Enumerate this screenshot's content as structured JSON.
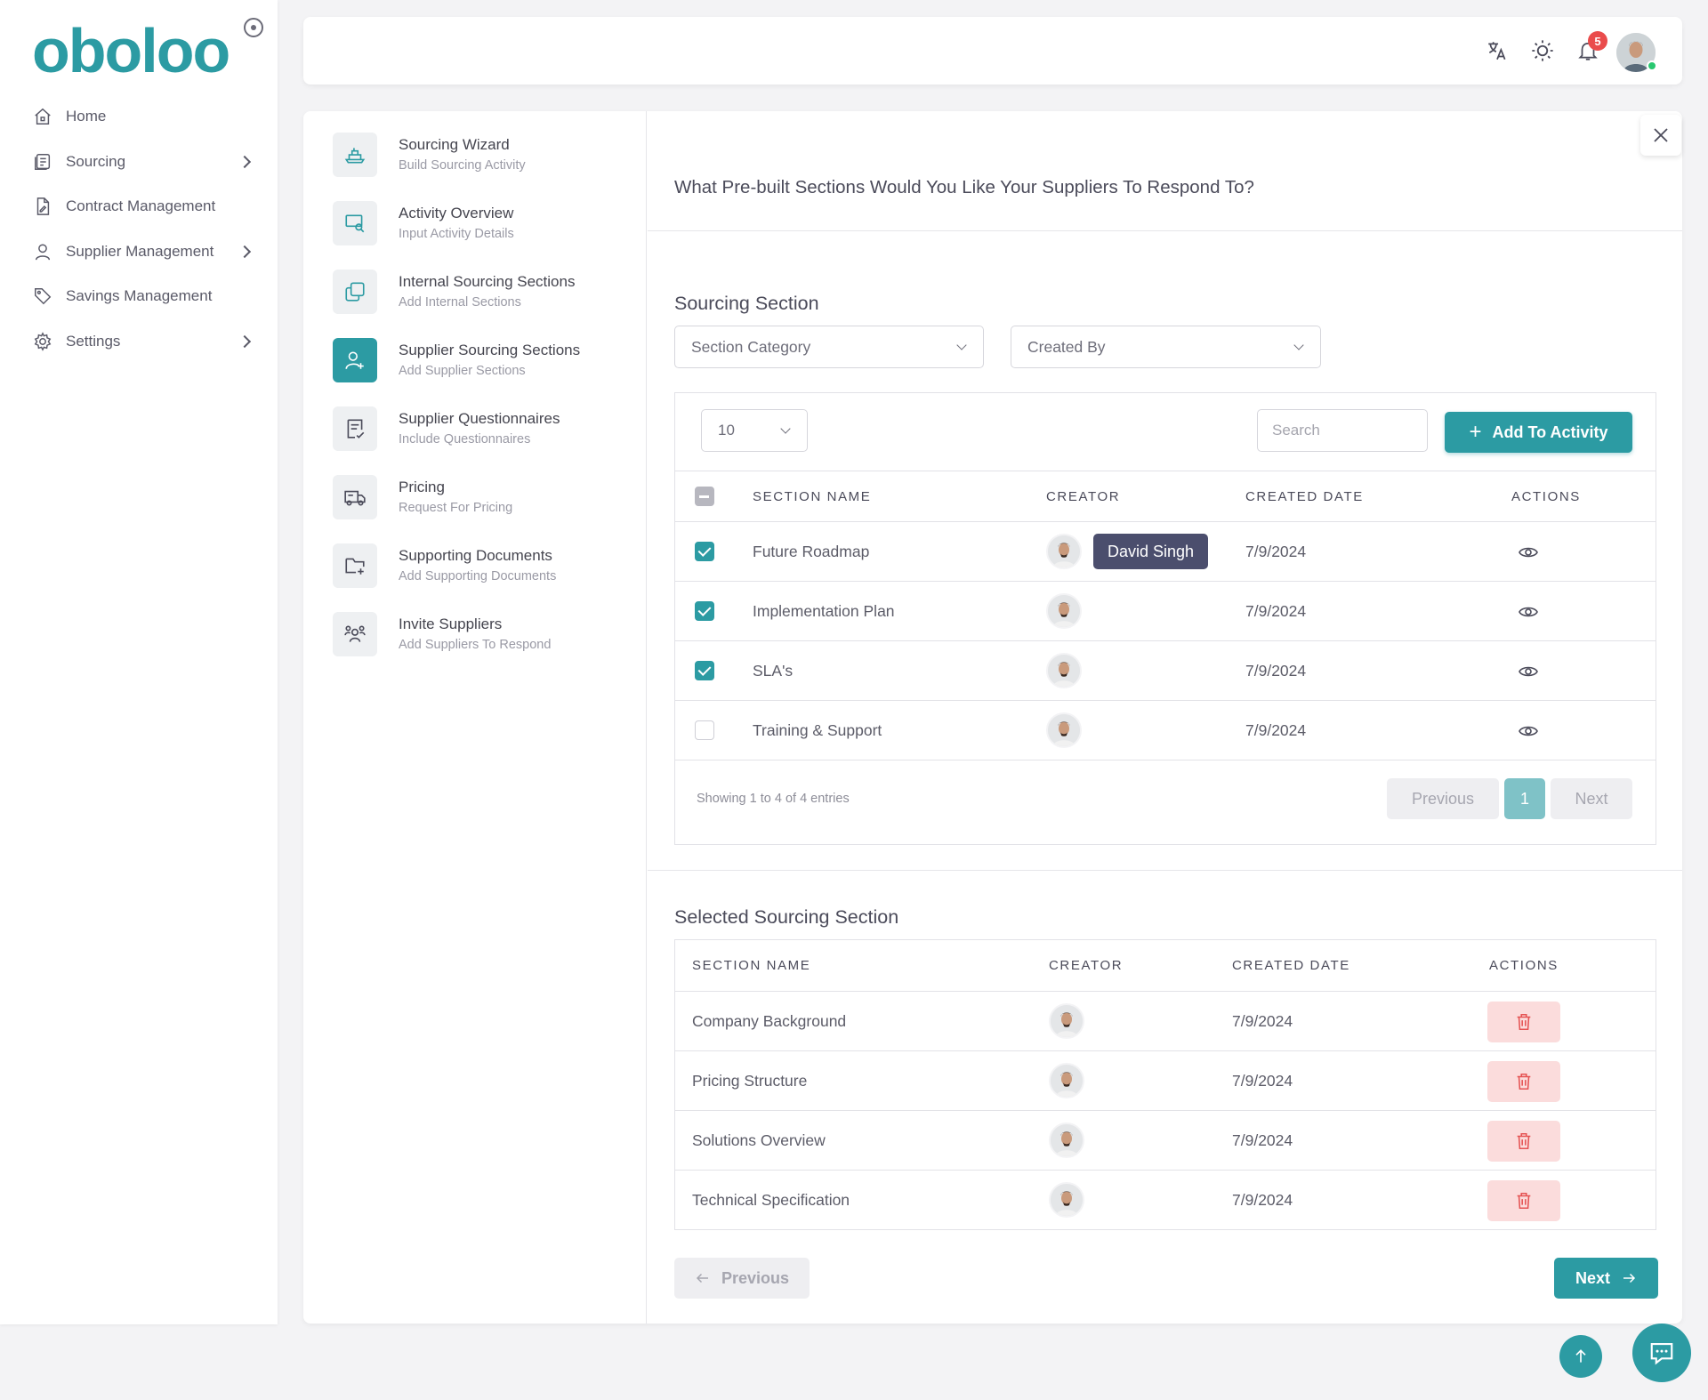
{
  "app": {
    "logo": "oboloo"
  },
  "sidebar": {
    "items": [
      {
        "label": "Home",
        "icon": "home-icon"
      },
      {
        "label": "Sourcing",
        "icon": "sourcing-icon",
        "has_submenu": true
      },
      {
        "label": "Contract Management",
        "icon": "contract-icon"
      },
      {
        "label": "Supplier Management",
        "icon": "user-icon",
        "has_submenu": true
      },
      {
        "label": "Savings Management",
        "icon": "tag-icon"
      },
      {
        "label": "Settings",
        "icon": "gear-icon",
        "has_submenu": true
      }
    ]
  },
  "topbar": {
    "notification_count": "5"
  },
  "steps": [
    {
      "title": "Sourcing Wizard",
      "subtitle": "Build Sourcing Activity"
    },
    {
      "title": "Activity Overview",
      "subtitle": "Input Activity Details"
    },
    {
      "title": "Internal Sourcing Sections",
      "subtitle": "Add Internal Sections"
    },
    {
      "title": "Supplier Sourcing Sections",
      "subtitle": "Add Supplier Sections",
      "active": true
    },
    {
      "title": "Supplier Questionnaires",
      "subtitle": "Include Questionnaires"
    },
    {
      "title": "Pricing",
      "subtitle": "Request For Pricing"
    },
    {
      "title": "Supporting Documents",
      "subtitle": "Add Supporting Documents"
    },
    {
      "title": "Invite Suppliers",
      "subtitle": "Add Suppliers To Respond"
    }
  ],
  "main": {
    "question": "What Pre-built Sections Would You Like Your Suppliers To Respond To?",
    "sourcing_section": {
      "title": "Sourcing Section",
      "filters": {
        "category": "Section Category",
        "created_by": "Created By"
      },
      "page_length": "10",
      "search_placeholder": "Search",
      "add_button": "Add To Activity",
      "headers": [
        "SECTION NAME",
        "CREATOR",
        "CREATED DATE",
        "ACTIONS"
      ],
      "rows": [
        {
          "name": "Future Roadmap",
          "date": "7/9/2024",
          "checked": true
        },
        {
          "name": "Implementation Plan",
          "date": "7/9/2024",
          "checked": true
        },
        {
          "name": "SLA's",
          "date": "7/9/2024",
          "checked": true
        },
        {
          "name": "Training & Support",
          "date": "7/9/2024",
          "checked": false
        }
      ],
      "tooltip": "David Singh",
      "info": "Showing 1 to 4 of 4 entries",
      "pagination": {
        "previous": "Previous",
        "page": "1",
        "next": "Next"
      }
    },
    "selected_section": {
      "title": "Selected Sourcing Section",
      "headers": [
        "SECTION NAME",
        "CREATOR",
        "CREATED DATE",
        "ACTIONS"
      ],
      "rows": [
        {
          "name": "Company Background",
          "date": "7/9/2024"
        },
        {
          "name": "Pricing Structure",
          "date": "7/9/2024"
        },
        {
          "name": "Solutions Overview",
          "date": "7/9/2024"
        },
        {
          "name": "Technical Specification",
          "date": "7/9/2024"
        }
      ]
    },
    "footer": {
      "previous": "Previous",
      "next": "Next"
    }
  },
  "colors": {
    "accent": "#2c9ba3",
    "danger_bg": "#fbdcdc",
    "danger": "#e55353",
    "badge": "#ea4c4c",
    "tooltip_bg": "#4b4e6d"
  }
}
